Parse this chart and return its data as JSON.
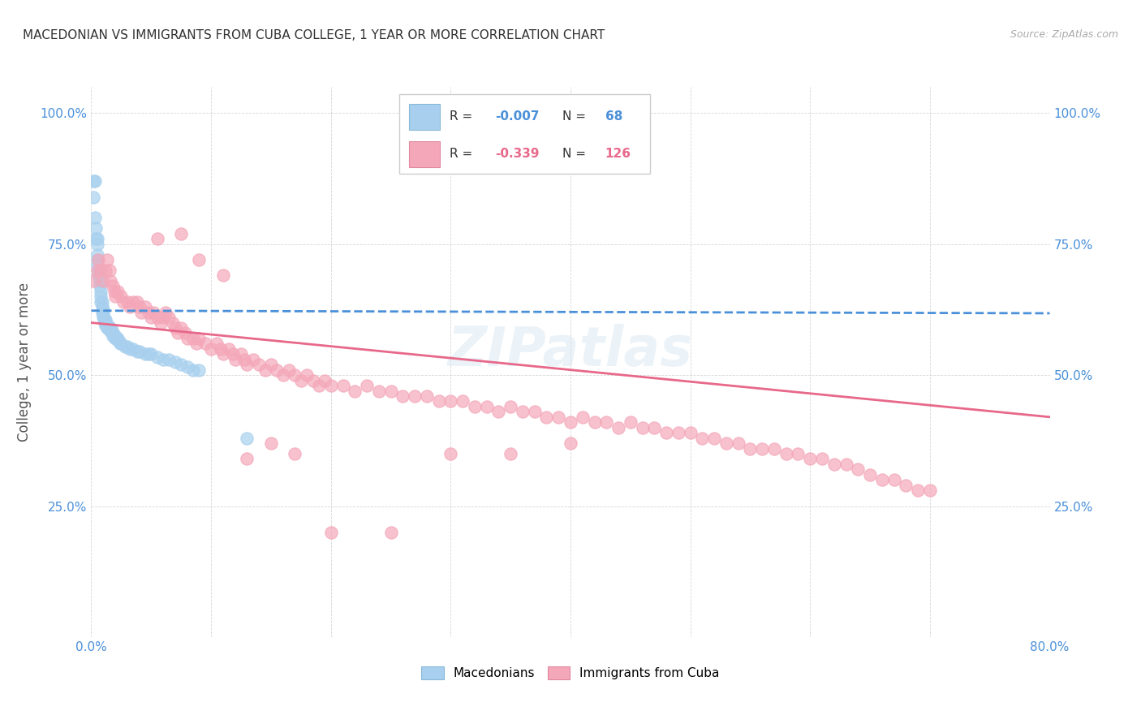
{
  "title": "MACEDONIAN VS IMMIGRANTS FROM CUBA COLLEGE, 1 YEAR OR MORE CORRELATION CHART",
  "source": "Source: ZipAtlas.com",
  "ylabel_text": "College, 1 year or more",
  "x_tick_positions": [
    0.0,
    0.1,
    0.2,
    0.3,
    0.4,
    0.5,
    0.6,
    0.7,
    0.8
  ],
  "x_tick_labels": [
    "0.0%",
    "",
    "",
    "",
    "",
    "",
    "",
    "",
    "80.0%"
  ],
  "y_tick_positions": [
    0.0,
    0.25,
    0.5,
    0.75,
    1.0
  ],
  "y_tick_labels": [
    "",
    "25.0%",
    "50.0%",
    "75.0%",
    "100.0%"
  ],
  "x_min": 0.0,
  "x_max": 0.8,
  "y_min": 0.0,
  "y_max": 1.05,
  "macedonian_color": "#a8d0ee",
  "cuba_color": "#f4a7b9",
  "macedonian_line_color": "#4a90d9",
  "cuba_line_color": "#e8688a",
  "macedonian_R": -0.007,
  "macedonian_N": 68,
  "cuba_R": -0.339,
  "cuba_N": 126,
  "watermark": "ZIPatlas",
  "legend_label_macedonian": "Macedonians",
  "legend_label_cuba": "Immigrants from Cuba",
  "macedonian_x": [
    0.002,
    0.003,
    0.002,
    0.003,
    0.004,
    0.004,
    0.005,
    0.005,
    0.005,
    0.005,
    0.005,
    0.006,
    0.006,
    0.007,
    0.007,
    0.008,
    0.008,
    0.008,
    0.009,
    0.009,
    0.009,
    0.01,
    0.01,
    0.01,
    0.01,
    0.011,
    0.011,
    0.012,
    0.012,
    0.012,
    0.013,
    0.013,
    0.014,
    0.014,
    0.015,
    0.015,
    0.016,
    0.016,
    0.017,
    0.017,
    0.018,
    0.018,
    0.019,
    0.02,
    0.02,
    0.021,
    0.022,
    0.023,
    0.024,
    0.025,
    0.028,
    0.03,
    0.032,
    0.035,
    0.038,
    0.04,
    0.045,
    0.048,
    0.05,
    0.055,
    0.06,
    0.065,
    0.07,
    0.075,
    0.08,
    0.085,
    0.09,
    0.13
  ],
  "macedonian_y": [
    0.87,
    0.87,
    0.84,
    0.8,
    0.78,
    0.76,
    0.76,
    0.75,
    0.73,
    0.72,
    0.71,
    0.7,
    0.69,
    0.68,
    0.67,
    0.66,
    0.65,
    0.64,
    0.64,
    0.63,
    0.62,
    0.625,
    0.62,
    0.615,
    0.61,
    0.605,
    0.6,
    0.605,
    0.6,
    0.595,
    0.595,
    0.59,
    0.595,
    0.59,
    0.59,
    0.585,
    0.59,
    0.585,
    0.585,
    0.58,
    0.58,
    0.575,
    0.575,
    0.575,
    0.57,
    0.57,
    0.57,
    0.565,
    0.56,
    0.56,
    0.555,
    0.555,
    0.55,
    0.55,
    0.545,
    0.545,
    0.54,
    0.54,
    0.54,
    0.535,
    0.53,
    0.53,
    0.525,
    0.52,
    0.515,
    0.51,
    0.51,
    0.38
  ],
  "cuba_x": [
    0.002,
    0.005,
    0.006,
    0.008,
    0.01,
    0.012,
    0.013,
    0.015,
    0.016,
    0.018,
    0.019,
    0.02,
    0.022,
    0.025,
    0.027,
    0.03,
    0.032,
    0.035,
    0.038,
    0.04,
    0.042,
    0.045,
    0.048,
    0.05,
    0.052,
    0.055,
    0.058,
    0.06,
    0.062,
    0.065,
    0.068,
    0.07,
    0.072,
    0.075,
    0.078,
    0.08,
    0.085,
    0.088,
    0.09,
    0.095,
    0.1,
    0.105,
    0.108,
    0.11,
    0.115,
    0.118,
    0.12,
    0.125,
    0.128,
    0.13,
    0.135,
    0.14,
    0.145,
    0.15,
    0.155,
    0.16,
    0.165,
    0.17,
    0.175,
    0.18,
    0.185,
    0.19,
    0.195,
    0.2,
    0.21,
    0.22,
    0.23,
    0.24,
    0.25,
    0.26,
    0.27,
    0.28,
    0.29,
    0.3,
    0.31,
    0.32,
    0.33,
    0.34,
    0.35,
    0.36,
    0.37,
    0.38,
    0.39,
    0.4,
    0.41,
    0.42,
    0.43,
    0.44,
    0.45,
    0.46,
    0.47,
    0.48,
    0.49,
    0.5,
    0.51,
    0.52,
    0.53,
    0.54,
    0.55,
    0.56,
    0.57,
    0.58,
    0.59,
    0.6,
    0.61,
    0.62,
    0.63,
    0.64,
    0.65,
    0.66,
    0.67,
    0.68,
    0.69,
    0.7,
    0.055,
    0.075,
    0.09,
    0.11,
    0.13,
    0.15,
    0.17,
    0.2,
    0.25,
    0.3,
    0.35,
    0.4
  ],
  "cuba_y": [
    0.68,
    0.7,
    0.72,
    0.7,
    0.68,
    0.7,
    0.72,
    0.7,
    0.68,
    0.67,
    0.66,
    0.65,
    0.66,
    0.65,
    0.64,
    0.64,
    0.63,
    0.64,
    0.64,
    0.63,
    0.62,
    0.63,
    0.62,
    0.61,
    0.62,
    0.61,
    0.6,
    0.61,
    0.62,
    0.61,
    0.6,
    0.59,
    0.58,
    0.59,
    0.58,
    0.57,
    0.57,
    0.56,
    0.57,
    0.56,
    0.55,
    0.56,
    0.55,
    0.54,
    0.55,
    0.54,
    0.53,
    0.54,
    0.53,
    0.52,
    0.53,
    0.52,
    0.51,
    0.52,
    0.51,
    0.5,
    0.51,
    0.5,
    0.49,
    0.5,
    0.49,
    0.48,
    0.49,
    0.48,
    0.48,
    0.47,
    0.48,
    0.47,
    0.47,
    0.46,
    0.46,
    0.46,
    0.45,
    0.45,
    0.45,
    0.44,
    0.44,
    0.43,
    0.44,
    0.43,
    0.43,
    0.42,
    0.42,
    0.41,
    0.42,
    0.41,
    0.41,
    0.4,
    0.41,
    0.4,
    0.4,
    0.39,
    0.39,
    0.39,
    0.38,
    0.38,
    0.37,
    0.37,
    0.36,
    0.36,
    0.36,
    0.35,
    0.35,
    0.34,
    0.34,
    0.33,
    0.33,
    0.32,
    0.31,
    0.3,
    0.3,
    0.29,
    0.28,
    0.28,
    0.76,
    0.77,
    0.72,
    0.69,
    0.34,
    0.37,
    0.35,
    0.2,
    0.2,
    0.35,
    0.35,
    0.37
  ]
}
